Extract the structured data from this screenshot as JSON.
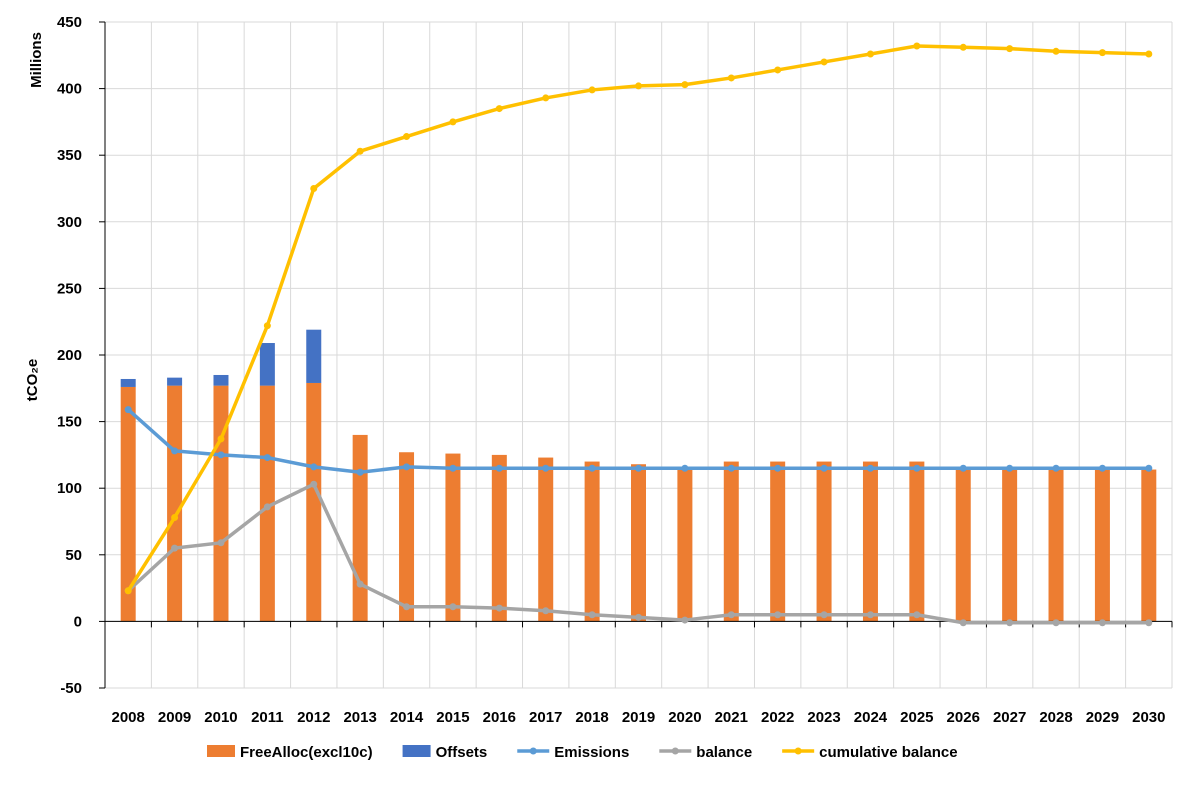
{
  "chart_data": {
    "type": "bar+line",
    "categories": [
      "2008",
      "2009",
      "2010",
      "2011",
      "2012",
      "2013",
      "2014",
      "2015",
      "2016",
      "2017",
      "2018",
      "2019",
      "2020",
      "2021",
      "2022",
      "2023",
      "2024",
      "2025",
      "2026",
      "2027",
      "2028",
      "2029",
      "2030"
    ],
    "ylabel": "tCO₂e",
    "units_label": "Millions",
    "ylim": [
      -50,
      450
    ],
    "yticks": [
      {
        "value": -50,
        "label": "-50"
      },
      {
        "value": 0,
        "label": "0"
      },
      {
        "value": 50,
        "label": "50"
      },
      {
        "value": 100,
        "label": "100"
      },
      {
        "value": 150,
        "label": "150"
      },
      {
        "value": 200,
        "label": "200"
      },
      {
        "value": 250,
        "label": "250"
      },
      {
        "value": 300,
        "label": "300"
      },
      {
        "value": 350,
        "label": "350"
      },
      {
        "value": 400,
        "label": "400"
      },
      {
        "value": 450,
        "label": "450"
      }
    ],
    "grid": true,
    "legend_position": "bottom",
    "bar_series": [
      {
        "name": "FreeAlloc(excl10c)",
        "color": "#ED7D31",
        "values": [
          176,
          177,
          177,
          177,
          179,
          140,
          127,
          126,
          125,
          123,
          120,
          118,
          116,
          120,
          120,
          120,
          120,
          120,
          114,
          114,
          114,
          114,
          114
        ]
      },
      {
        "name": "Offsets",
        "color": "#4472C4",
        "values": [
          6,
          6,
          8,
          32,
          40,
          0,
          0,
          0,
          0,
          0,
          0,
          0,
          0,
          0,
          0,
          0,
          0,
          0,
          0,
          0,
          0,
          0,
          0
        ]
      }
    ],
    "line_series": [
      {
        "name": "Emissions",
        "color": "#5B9BD5",
        "values": [
          159,
          128,
          125,
          123,
          116,
          112,
          116,
          115,
          115,
          115,
          115,
          115,
          115,
          115,
          115,
          115,
          115,
          115,
          115,
          115,
          115,
          115,
          115
        ]
      },
      {
        "name": "balance",
        "color": "#A5A5A5",
        "values": [
          23,
          55,
          59,
          86,
          103,
          28,
          11,
          11,
          10,
          8,
          5,
          3,
          1,
          5,
          5,
          5,
          5,
          5,
          -1,
          -1,
          -1,
          -1,
          -1
        ]
      },
      {
        "name": "cumulative balance",
        "color": "#FFC000",
        "values": [
          23,
          78,
          137,
          222,
          325,
          353,
          364,
          375,
          385,
          393,
          399,
          402,
          403,
          408,
          414,
          420,
          426,
          432,
          431,
          430,
          428,
          427,
          426
        ]
      }
    ]
  }
}
